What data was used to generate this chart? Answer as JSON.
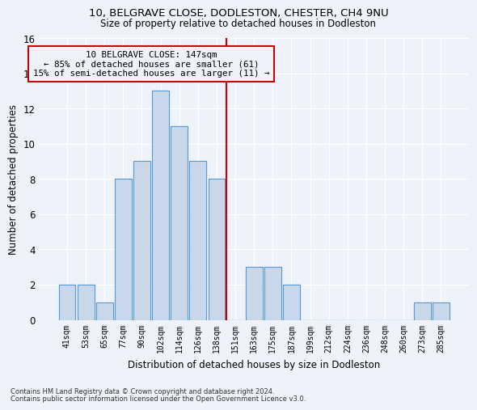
{
  "title": "10, BELGRAVE CLOSE, DODLESTON, CHESTER, CH4 9NU",
  "subtitle": "Size of property relative to detached houses in Dodleston",
  "xlabel": "Distribution of detached houses by size in Dodleston",
  "ylabel": "Number of detached properties",
  "bin_labels": [
    "41sqm",
    "53sqm",
    "65sqm",
    "77sqm",
    "90sqm",
    "102sqm",
    "114sqm",
    "126sqm",
    "138sqm",
    "151sqm",
    "163sqm",
    "175sqm",
    "187sqm",
    "199sqm",
    "212sqm",
    "224sqm",
    "236sqm",
    "248sqm",
    "260sqm",
    "273sqm",
    "285sqm"
  ],
  "bar_values": [
    2,
    2,
    1,
    8,
    9,
    13,
    11,
    9,
    8,
    0,
    3,
    3,
    2,
    0,
    0,
    0,
    0,
    0,
    0,
    1,
    1
  ],
  "bar_color": "#c8d8ea",
  "bar_edge_color": "#5b9bd5",
  "vline_color": "#cc0000",
  "annotation_box_edge": "#cc0000",
  "subject_label": "10 BELGRAVE CLOSE: 147sqm",
  "annotation_line1": "← 85% of detached houses are smaller (61)",
  "annotation_line2": "15% of semi-detached houses are larger (11) →",
  "footer1": "Contains HM Land Registry data © Crown copyright and database right 2024.",
  "footer2": "Contains public sector information licensed under the Open Government Licence v3.0.",
  "ylim": [
    0,
    16
  ],
  "yticks": [
    0,
    2,
    4,
    6,
    8,
    10,
    12,
    14,
    16
  ],
  "background_color": "#eef2f9",
  "grid_color": "#ffffff",
  "vline_x": 8.5
}
